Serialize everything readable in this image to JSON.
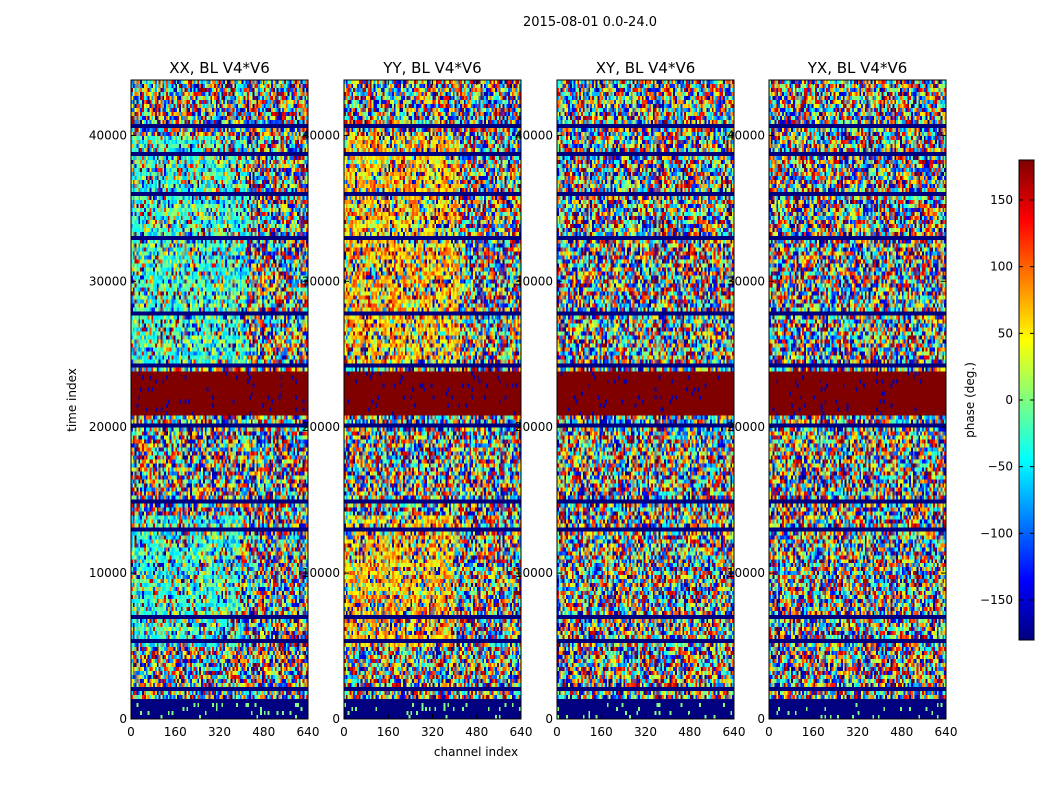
{
  "figure": {
    "suptitle": "2015-08-01 0.0-24.0"
  },
  "chart_data": {
    "type": "heatmap",
    "xlabel": "channel index",
    "ylabel": "time index",
    "xlim": [
      0,
      640
    ],
    "ylim": [
      0,
      43800
    ],
    "xticks": [
      0,
      160,
      320,
      480,
      640
    ],
    "yticks": [
      0,
      10000,
      20000,
      30000,
      40000
    ],
    "panels": [
      {
        "title": "XX, BL V4*V6",
        "id": "xx"
      },
      {
        "title": "YY, BL V4*V6",
        "id": "yy"
      },
      {
        "title": "XY, BL V4*V6",
        "id": "xy"
      },
      {
        "title": "YX, BL V4*V6",
        "id": "yx"
      }
    ],
    "colorbar": {
      "label": "phase (deg.)",
      "range": [
        -180,
        180
      ],
      "ticks": [
        150,
        100,
        50,
        0,
        -50,
        -100,
        -150
      ],
      "colormap": "jet"
    },
    "features": {
      "saturated_band_time": [
        20700,
        23700
      ],
      "saturated_band_value": 180,
      "low_band_time": [
        0,
        1500
      ],
      "low_band_value": -180,
      "blank_row_times": [
        1500,
        2100,
        5500,
        7100,
        13200,
        15000,
        20300,
        24500,
        27800,
        33200,
        36000,
        38900,
        40800
      ],
      "coherent_region_times": [
        {
          "from": 5000,
          "to": 14000,
          "channels": [
            0,
            400
          ]
        },
        {
          "from": 24000,
          "to": 40000,
          "channels": [
            0,
            420
          ]
        }
      ]
    }
  }
}
